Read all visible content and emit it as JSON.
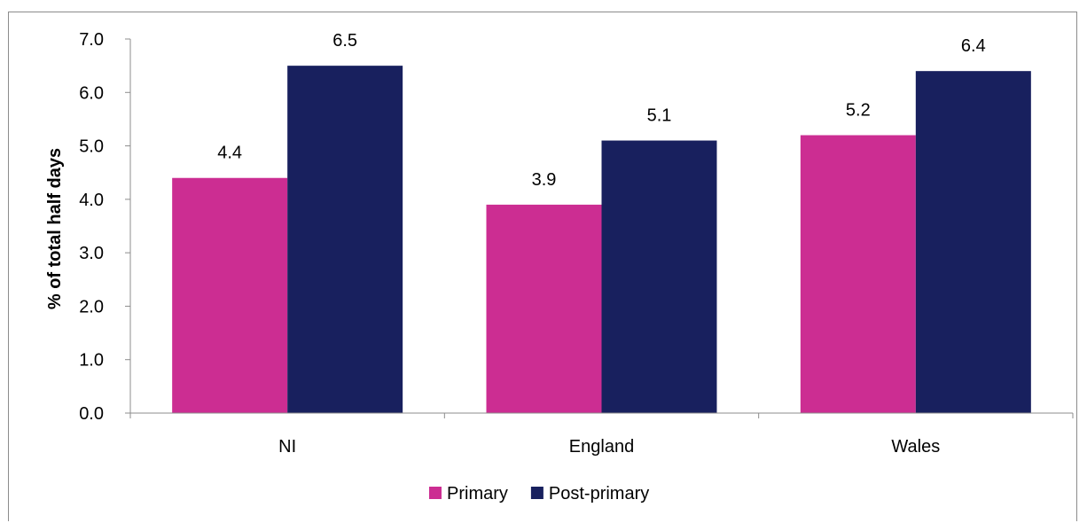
{
  "chart_data": {
    "type": "bar",
    "title": "",
    "xlabel": "",
    "ylabel": "% of total half days",
    "categories": [
      "NI",
      "England",
      "Wales"
    ],
    "series": [
      {
        "name": "Primary",
        "color": "#cc2d92",
        "values": [
          4.4,
          3.9,
          5.2
        ]
      },
      {
        "name": "Post-primary",
        "color": "#18205e",
        "values": [
          6.5,
          5.1,
          6.4
        ]
      }
    ],
    "ylim": [
      0,
      7
    ],
    "yticks": [
      "0.0",
      "1.0",
      "2.0",
      "3.0",
      "4.0",
      "5.0",
      "6.0",
      "7.0"
    ],
    "data_labels": [
      [
        "4.4",
        "3.9",
        "5.2"
      ],
      [
        "6.5",
        "5.1",
        "6.4"
      ]
    ],
    "grid": false,
    "legend_position": "bottom"
  }
}
